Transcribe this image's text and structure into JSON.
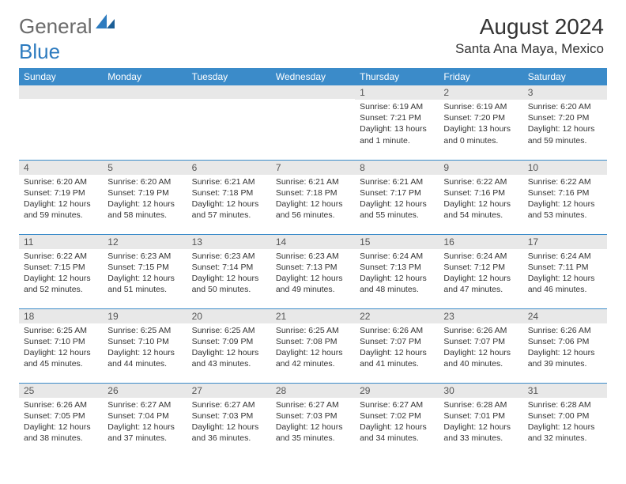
{
  "logo": {
    "text1": "General",
    "text2": "Blue"
  },
  "title": "August 2024",
  "location": "Santa Ana Maya, Mexico",
  "colors": {
    "header_bg": "#3b8bc9",
    "header_text": "#ffffff",
    "daynum_bg": "#e8e8e8",
    "daynum_text": "#555555",
    "border": "#3b8bc9",
    "body_text": "#333333",
    "logo_gray": "#6b6b6b",
    "logo_blue": "#2d7bbf"
  },
  "day_names": [
    "Sunday",
    "Monday",
    "Tuesday",
    "Wednesday",
    "Thursday",
    "Friday",
    "Saturday"
  ],
  "weeks": [
    [
      {
        "n": "",
        "lines": []
      },
      {
        "n": "",
        "lines": []
      },
      {
        "n": "",
        "lines": []
      },
      {
        "n": "",
        "lines": []
      },
      {
        "n": "1",
        "lines": [
          "Sunrise: 6:19 AM",
          "Sunset: 7:21 PM",
          "Daylight: 13 hours and 1 minute."
        ]
      },
      {
        "n": "2",
        "lines": [
          "Sunrise: 6:19 AM",
          "Sunset: 7:20 PM",
          "Daylight: 13 hours and 0 minutes."
        ]
      },
      {
        "n": "3",
        "lines": [
          "Sunrise: 6:20 AM",
          "Sunset: 7:20 PM",
          "Daylight: 12 hours and 59 minutes."
        ]
      }
    ],
    [
      {
        "n": "4",
        "lines": [
          "Sunrise: 6:20 AM",
          "Sunset: 7:19 PM",
          "Daylight: 12 hours and 59 minutes."
        ]
      },
      {
        "n": "5",
        "lines": [
          "Sunrise: 6:20 AM",
          "Sunset: 7:19 PM",
          "Daylight: 12 hours and 58 minutes."
        ]
      },
      {
        "n": "6",
        "lines": [
          "Sunrise: 6:21 AM",
          "Sunset: 7:18 PM",
          "Daylight: 12 hours and 57 minutes."
        ]
      },
      {
        "n": "7",
        "lines": [
          "Sunrise: 6:21 AM",
          "Sunset: 7:18 PM",
          "Daylight: 12 hours and 56 minutes."
        ]
      },
      {
        "n": "8",
        "lines": [
          "Sunrise: 6:21 AM",
          "Sunset: 7:17 PM",
          "Daylight: 12 hours and 55 minutes."
        ]
      },
      {
        "n": "9",
        "lines": [
          "Sunrise: 6:22 AM",
          "Sunset: 7:16 PM",
          "Daylight: 12 hours and 54 minutes."
        ]
      },
      {
        "n": "10",
        "lines": [
          "Sunrise: 6:22 AM",
          "Sunset: 7:16 PM",
          "Daylight: 12 hours and 53 minutes."
        ]
      }
    ],
    [
      {
        "n": "11",
        "lines": [
          "Sunrise: 6:22 AM",
          "Sunset: 7:15 PM",
          "Daylight: 12 hours and 52 minutes."
        ]
      },
      {
        "n": "12",
        "lines": [
          "Sunrise: 6:23 AM",
          "Sunset: 7:15 PM",
          "Daylight: 12 hours and 51 minutes."
        ]
      },
      {
        "n": "13",
        "lines": [
          "Sunrise: 6:23 AM",
          "Sunset: 7:14 PM",
          "Daylight: 12 hours and 50 minutes."
        ]
      },
      {
        "n": "14",
        "lines": [
          "Sunrise: 6:23 AM",
          "Sunset: 7:13 PM",
          "Daylight: 12 hours and 49 minutes."
        ]
      },
      {
        "n": "15",
        "lines": [
          "Sunrise: 6:24 AM",
          "Sunset: 7:13 PM",
          "Daylight: 12 hours and 48 minutes."
        ]
      },
      {
        "n": "16",
        "lines": [
          "Sunrise: 6:24 AM",
          "Sunset: 7:12 PM",
          "Daylight: 12 hours and 47 minutes."
        ]
      },
      {
        "n": "17",
        "lines": [
          "Sunrise: 6:24 AM",
          "Sunset: 7:11 PM",
          "Daylight: 12 hours and 46 minutes."
        ]
      }
    ],
    [
      {
        "n": "18",
        "lines": [
          "Sunrise: 6:25 AM",
          "Sunset: 7:10 PM",
          "Daylight: 12 hours and 45 minutes."
        ]
      },
      {
        "n": "19",
        "lines": [
          "Sunrise: 6:25 AM",
          "Sunset: 7:10 PM",
          "Daylight: 12 hours and 44 minutes."
        ]
      },
      {
        "n": "20",
        "lines": [
          "Sunrise: 6:25 AM",
          "Sunset: 7:09 PM",
          "Daylight: 12 hours and 43 minutes."
        ]
      },
      {
        "n": "21",
        "lines": [
          "Sunrise: 6:25 AM",
          "Sunset: 7:08 PM",
          "Daylight: 12 hours and 42 minutes."
        ]
      },
      {
        "n": "22",
        "lines": [
          "Sunrise: 6:26 AM",
          "Sunset: 7:07 PM",
          "Daylight: 12 hours and 41 minutes."
        ]
      },
      {
        "n": "23",
        "lines": [
          "Sunrise: 6:26 AM",
          "Sunset: 7:07 PM",
          "Daylight: 12 hours and 40 minutes."
        ]
      },
      {
        "n": "24",
        "lines": [
          "Sunrise: 6:26 AM",
          "Sunset: 7:06 PM",
          "Daylight: 12 hours and 39 minutes."
        ]
      }
    ],
    [
      {
        "n": "25",
        "lines": [
          "Sunrise: 6:26 AM",
          "Sunset: 7:05 PM",
          "Daylight: 12 hours and 38 minutes."
        ]
      },
      {
        "n": "26",
        "lines": [
          "Sunrise: 6:27 AM",
          "Sunset: 7:04 PM",
          "Daylight: 12 hours and 37 minutes."
        ]
      },
      {
        "n": "27",
        "lines": [
          "Sunrise: 6:27 AM",
          "Sunset: 7:03 PM",
          "Daylight: 12 hours and 36 minutes."
        ]
      },
      {
        "n": "28",
        "lines": [
          "Sunrise: 6:27 AM",
          "Sunset: 7:03 PM",
          "Daylight: 12 hours and 35 minutes."
        ]
      },
      {
        "n": "29",
        "lines": [
          "Sunrise: 6:27 AM",
          "Sunset: 7:02 PM",
          "Daylight: 12 hours and 34 minutes."
        ]
      },
      {
        "n": "30",
        "lines": [
          "Sunrise: 6:28 AM",
          "Sunset: 7:01 PM",
          "Daylight: 12 hours and 33 minutes."
        ]
      },
      {
        "n": "31",
        "lines": [
          "Sunrise: 6:28 AM",
          "Sunset: 7:00 PM",
          "Daylight: 12 hours and 32 minutes."
        ]
      }
    ]
  ]
}
